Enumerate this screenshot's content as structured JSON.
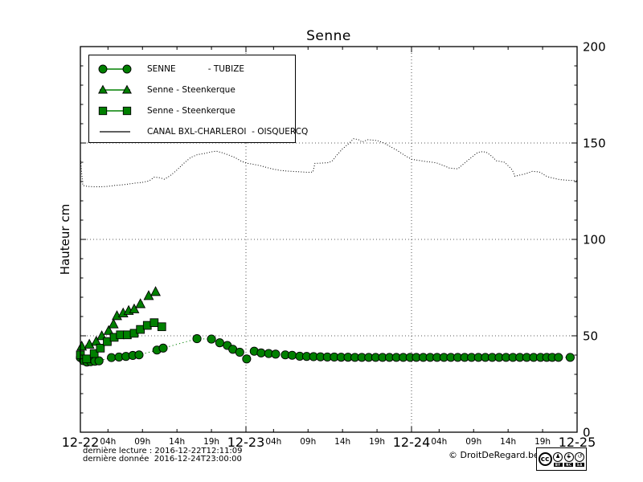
{
  "title": "Senne",
  "ylabel": "Hauteur cm",
  "colors": {
    "series_green": "#008000",
    "line_black": "#000000"
  },
  "legend": {
    "items": [
      {
        "label": "SENNE            - TUBIZE",
        "marker": "circle"
      },
      {
        "label": "Senne - Steenkerque",
        "marker": "triangle"
      },
      {
        "label": "Senne - Steenkerque",
        "marker": "square"
      },
      {
        "label": "CANAL BXL-CHARLEROI  - OISQUERCQ",
        "marker": "line"
      }
    ]
  },
  "footer": {
    "line1": "dernière lecture : 2016-12-22T12:11:09",
    "line2": "dernière donnée  2016-12-24T23:00:00",
    "copyright": "© DroitDeRegard.be"
  },
  "license_badge": {
    "cc": "cc",
    "by_glyph": "♟",
    "nc_glyph": "$",
    "sa_glyph": "↺",
    "by_label": "BY",
    "nc_label": "NC",
    "sa_label": "SA"
  },
  "chart_data": {
    "type": "line",
    "title": "Senne",
    "xlabel": "",
    "ylabel": "Hauteur cm",
    "ylim": [
      0,
      200
    ],
    "y_ticks": [
      0,
      50,
      100,
      150,
      200
    ],
    "y_tick_labels": [
      "0",
      "50",
      "100",
      "150",
      "200"
    ],
    "y_minor_step": 10,
    "x_unit": "hours since 2016-12-22 00:00",
    "x_hours_range": [
      0,
      72
    ],
    "x_major_hours": [
      0,
      24,
      48,
      72
    ],
    "x_day_labels": [
      "12-22",
      "12-23",
      "12-24",
      "12-25"
    ],
    "x_minor_hour_offsets": [
      4,
      9,
      14,
      19
    ],
    "x_hour_labels": [
      "04h",
      "09h",
      "14h",
      "19h"
    ],
    "grid": {
      "vertical_at_hours": [
        24,
        48
      ],
      "horizontal_at_values": [
        50,
        100,
        150
      ],
      "style": "dotted"
    },
    "legend_position": "upper-left",
    "series": [
      {
        "name": "SENNE - TUBIZE",
        "marker": "circle",
        "color": "#008000",
        "line_style": "dotted",
        "points": [
          [
            0,
            38.7
          ],
          [
            0.45,
            37.1
          ],
          [
            0.95,
            36.4
          ],
          [
            1.5,
            36.6
          ],
          [
            2.1,
            36.8
          ],
          [
            2.7,
            37
          ],
          [
            4.5,
            38.7
          ],
          [
            5.6,
            39
          ],
          [
            6.6,
            39.3
          ],
          [
            7.6,
            39.8
          ],
          [
            8.5,
            40.1
          ],
          [
            11.1,
            42.6
          ],
          [
            12,
            43.6
          ],
          [
            16.9,
            48.5
          ],
          [
            19,
            48.3
          ],
          [
            20.2,
            46.4
          ],
          [
            21.3,
            45
          ],
          [
            22.1,
            43
          ],
          [
            23.1,
            41.5
          ],
          [
            24.1,
            38
          ],
          [
            25.2,
            42
          ],
          [
            26.2,
            41.1
          ],
          [
            27.3,
            40.8
          ],
          [
            28.3,
            40.5
          ],
          [
            29.7,
            40.1
          ],
          [
            30.7,
            39.9
          ],
          [
            31.8,
            39.4
          ],
          [
            32.8,
            39.3
          ],
          [
            33.8,
            39.2
          ],
          [
            34.8,
            39.1
          ],
          [
            35.8,
            39
          ],
          [
            36.8,
            39
          ],
          [
            37.8,
            38.9
          ],
          [
            38.8,
            38.9
          ],
          [
            39.8,
            38.8
          ],
          [
            40.8,
            38.8
          ],
          [
            41.8,
            38.8
          ],
          [
            42.8,
            38.8
          ],
          [
            43.8,
            38.8
          ],
          [
            44.8,
            38.8
          ],
          [
            45.8,
            38.8
          ],
          [
            46.8,
            38.8
          ],
          [
            47.8,
            38.8
          ],
          [
            48.7,
            38.8
          ],
          [
            49.7,
            38.8
          ],
          [
            50.7,
            38.8
          ],
          [
            51.7,
            38.8
          ],
          [
            52.7,
            38.8
          ],
          [
            53.7,
            38.8
          ],
          [
            54.7,
            38.8
          ],
          [
            55.7,
            38.8
          ],
          [
            56.7,
            38.8
          ],
          [
            57.7,
            38.8
          ],
          [
            58.7,
            38.8
          ],
          [
            59.7,
            38.8
          ],
          [
            60.7,
            38.8
          ],
          [
            61.7,
            38.8
          ],
          [
            62.7,
            38.8
          ],
          [
            63.7,
            38.8
          ],
          [
            64.7,
            38.8
          ],
          [
            65.7,
            38.8
          ],
          [
            66.7,
            38.8
          ],
          [
            67.6,
            38.8
          ],
          [
            68.4,
            38.8
          ],
          [
            69.3,
            38.8
          ],
          [
            71,
            38.8
          ]
        ]
      },
      {
        "name": "Senne - Steenkerque",
        "marker": "triangle",
        "color": "#008000",
        "line_style": "dotted",
        "points": [
          [
            0.2,
            44.5
          ],
          [
            1.3,
            45.5
          ],
          [
            2.3,
            47
          ],
          [
            3.1,
            49.9
          ],
          [
            4.1,
            52.6
          ],
          [
            4.8,
            56
          ],
          [
            5.3,
            60.3
          ],
          [
            6.2,
            61.7
          ],
          [
            7,
            63
          ],
          [
            7.8,
            63.8
          ],
          [
            8.7,
            66.5
          ],
          [
            9.9,
            70.7
          ],
          [
            10.9,
            72.8
          ]
        ]
      },
      {
        "name": "Senne - Steenkerque",
        "marker": "square",
        "color": "#008000",
        "line_style": "dotted",
        "points": [
          [
            0,
            40.1
          ],
          [
            0.9,
            38
          ],
          [
            2,
            40.8
          ],
          [
            2.9,
            43.6
          ],
          [
            3.9,
            47
          ],
          [
            4.9,
            49.2
          ],
          [
            5.8,
            50.5
          ],
          [
            6.8,
            50.5
          ],
          [
            7.8,
            51.3
          ],
          [
            8.7,
            53.3
          ],
          [
            9.7,
            55.4
          ],
          [
            10.7,
            56.8
          ],
          [
            11.8,
            54.7
          ]
        ]
      },
      {
        "name": "CANAL BXL-CHARLEROI - OISQUERCQ",
        "marker": "none",
        "color": "#000000",
        "line_style": "dotted",
        "points": [
          [
            0,
            142.2
          ],
          [
            0.35,
            128
          ],
          [
            1,
            127.5
          ],
          [
            2,
            127.3
          ],
          [
            3,
            127.3
          ],
          [
            4,
            127.5
          ],
          [
            5,
            128
          ],
          [
            6,
            128.3
          ],
          [
            7,
            128.7
          ],
          [
            8,
            129.2
          ],
          [
            9,
            129.6
          ],
          [
            10,
            130.4
          ],
          [
            10.7,
            132.3
          ],
          [
            11.5,
            132
          ],
          [
            12.2,
            131.2
          ],
          [
            13,
            133
          ],
          [
            14,
            136
          ],
          [
            15,
            139.5
          ],
          [
            16,
            142.5
          ],
          [
            17,
            144
          ],
          [
            18,
            144.6
          ],
          [
            19,
            145.4
          ],
          [
            19.7,
            145.8
          ],
          [
            20.5,
            145
          ],
          [
            21.5,
            143.8
          ],
          [
            22.5,
            142.3
          ],
          [
            23.2,
            140.8
          ],
          [
            24,
            139.6
          ],
          [
            25,
            139
          ],
          [
            26,
            138.3
          ],
          [
            27,
            137.3
          ],
          [
            28,
            136.4
          ],
          [
            29,
            135.8
          ],
          [
            30,
            135.4
          ],
          [
            31,
            135.2
          ],
          [
            32,
            135
          ],
          [
            33,
            134.8
          ],
          [
            33.7,
            134.9
          ],
          [
            34,
            139.4
          ],
          [
            35,
            139.6
          ],
          [
            36,
            139.8
          ],
          [
            36.6,
            140.9
          ],
          [
            37,
            143
          ],
          [
            38,
            147
          ],
          [
            39,
            150
          ],
          [
            39.6,
            152.2
          ],
          [
            40.3,
            151.8
          ],
          [
            40.8,
            150.5
          ],
          [
            41.7,
            151.7
          ],
          [
            43,
            151.3
          ],
          [
            44,
            150
          ],
          [
            45,
            148
          ],
          [
            46,
            146
          ],
          [
            47,
            143.6
          ],
          [
            48,
            141.6
          ],
          [
            49,
            141
          ],
          [
            50,
            140.4
          ],
          [
            51,
            140
          ],
          [
            51.6,
            139.7
          ],
          [
            52.5,
            138.5
          ],
          [
            53.5,
            137
          ],
          [
            54.7,
            136.6
          ],
          [
            55.5,
            139
          ],
          [
            56.5,
            142
          ],
          [
            57.5,
            144.8
          ],
          [
            58,
            145.5
          ],
          [
            58.8,
            145.3
          ],
          [
            59.5,
            143.5
          ],
          [
            60.3,
            140.8
          ],
          [
            61.5,
            140
          ],
          [
            62.2,
            137.5
          ],
          [
            62.6,
            136
          ],
          [
            63,
            132.7
          ],
          [
            63.6,
            133.3
          ],
          [
            64.5,
            134
          ],
          [
            65.5,
            135.3
          ],
          [
            66.5,
            135
          ],
          [
            67,
            134
          ],
          [
            67.7,
            132.5
          ],
          [
            68.5,
            131.8
          ],
          [
            69.5,
            131
          ],
          [
            70.5,
            130.7
          ],
          [
            71.5,
            130.5
          ],
          [
            72,
            130.4
          ]
        ]
      }
    ]
  }
}
